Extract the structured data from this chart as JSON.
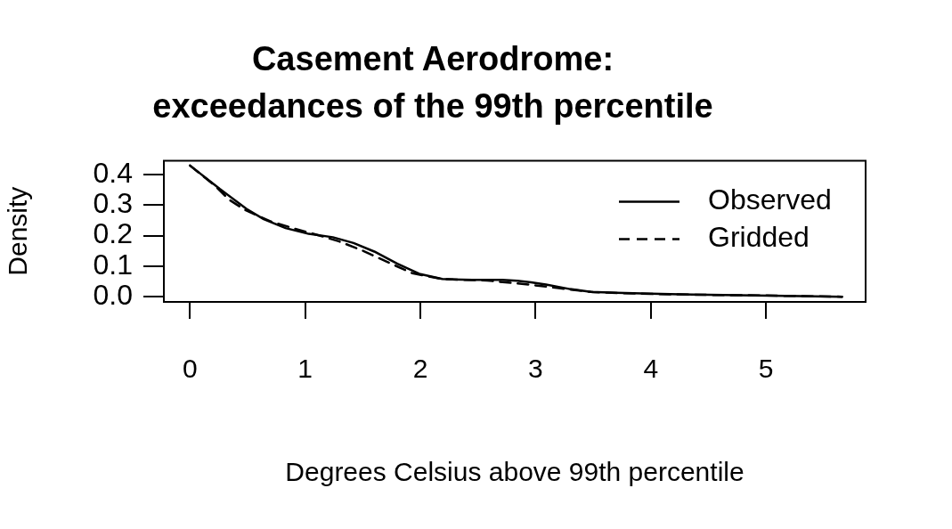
{
  "chart_data": {
    "type": "line",
    "title": "Casement Aerodrome:\nexceedances of the 99th percentile",
    "xlabel": "Degrees Celsius above 99th percentile",
    "ylabel": "Density",
    "xlim": [
      -0.227,
      5.865
    ],
    "ylim": [
      -0.017,
      0.446
    ],
    "xticks": [
      0,
      1,
      2,
      3,
      4,
      5
    ],
    "yticks": [
      {
        "value": 0,
        "label": "0.0"
      },
      0.1,
      0.2,
      0.3,
      0.4
    ],
    "grid": false,
    "legend": "top right",
    "marker": "none",
    "series": [
      {
        "name": "Observed",
        "color": "#000000",
        "line_style": "solid",
        "x": [
          0,
          0.26,
          0.49,
          0.64,
          0.83,
          1.03,
          1.24,
          1.42,
          1.6,
          1.8,
          1.99,
          2.19,
          2.45,
          2.71,
          2.84,
          2.96,
          3.09,
          3.3,
          3.48,
          3.7,
          4.0,
          4.5,
          4.9,
          5.3,
          5.66
        ],
        "values": [
          0.43,
          0.353,
          0.288,
          0.254,
          0.225,
          0.206,
          0.195,
          0.176,
          0.148,
          0.108,
          0.075,
          0.058,
          0.055,
          0.055,
          0.052,
          0.047,
          0.04,
          0.025,
          0.016,
          0.013,
          0.01,
          0.006,
          0.004,
          0.002,
          0.0
        ]
      },
      {
        "name": "Gridded",
        "color": "#000000",
        "line_style": "dashed",
        "x": [
          0,
          0.21,
          0.34,
          0.48,
          0.7,
          0.9,
          1.11,
          1.29,
          1.5,
          1.7,
          1.93,
          2.19,
          2.58,
          2.94,
          3.2,
          3.5,
          4.0,
          4.5,
          5.0,
          5.66
        ],
        "values": [
          0.43,
          0.366,
          0.318,
          0.284,
          0.247,
          0.224,
          0.202,
          0.182,
          0.151,
          0.116,
          0.077,
          0.058,
          0.053,
          0.04,
          0.028,
          0.015,
          0.009,
          0.006,
          0.004,
          0.0
        ]
      }
    ]
  }
}
